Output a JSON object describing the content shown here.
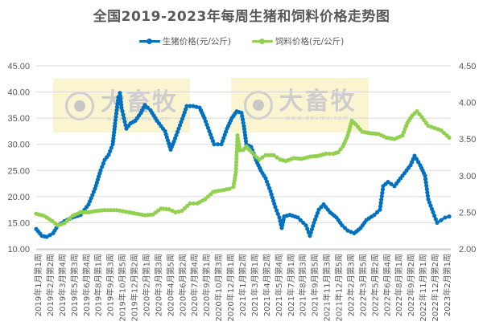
{
  "chart_data": {
    "type": "line",
    "title": "全国2019-2023年每周生猪和饲料价格走势图",
    "xlabel": "",
    "ylabel": "",
    "legend_position": "top",
    "grid": true,
    "y_left": {
      "min": 10,
      "max": 45,
      "step": 5,
      "ticks": [
        "10.00",
        "15.00",
        "20.00",
        "25.00",
        "30.00",
        "35.00",
        "40.00",
        "45.00"
      ]
    },
    "y_right": {
      "min": 2.0,
      "max": 4.5,
      "step": 0.5,
      "ticks": [
        "2.00",
        "2.50",
        "3.00",
        "3.50",
        "4.00",
        "4.50"
      ]
    },
    "categories": [
      "2019年1月第1周",
      "2019年2月第2周",
      "2019年3月第4周",
      "2019年5月第3周",
      "2019年6月第4周",
      "2019年8月第1周",
      "2019年9月第3周",
      "2019年10月第5周",
      "2019年12月第2周",
      "2020年2月第1周",
      "2020年3月第3周",
      "2020年4月第5周",
      "2020年6月第2周",
      "2020年7月第4周",
      "2020年9月第1周",
      "2020年10月第3周",
      "2020年12月第1周",
      "2021年1月第2周",
      "2021年3月第1周",
      "2021年4月第2周",
      "2021年5月第4周",
      "2021年7月第1周",
      "2021年8月第3周",
      "2021年9月第5周",
      "2021年11月第3周",
      "2021年12月第5周",
      "2022年2月第3周",
      "2022年3月第5周",
      "2022年5月第2周",
      "2022年6月第4周",
      "2022年8月第1周",
      "2022年9月第2周",
      "2022年11月第1周",
      "2022年12月第2周",
      "2023年2月第1周"
    ],
    "series": [
      {
        "name": "生猪价格(元/公斤)",
        "axis": "left",
        "color": "#0070C0",
        "points": [
          [
            45,
            13.8
          ],
          [
            52,
            12.5
          ],
          [
            58,
            12.3
          ],
          [
            66,
            13.0
          ],
          [
            72,
            14.5
          ],
          [
            80,
            15.3
          ],
          [
            90,
            16.0
          ],
          [
            100,
            16.5
          ],
          [
            110,
            18.5
          ],
          [
            118,
            21.5
          ],
          [
            125,
            25.0
          ],
          [
            130,
            27.0
          ],
          [
            135,
            28.0
          ],
          [
            140,
            30.0
          ],
          [
            143,
            34.0
          ],
          [
            147,
            39.0
          ],
          [
            149,
            39.8
          ],
          [
            151,
            37.0
          ],
          [
            154,
            35.0
          ],
          [
            157,
            33.0
          ],
          [
            162,
            34.0
          ],
          [
            168,
            34.5
          ],
          [
            175,
            36.0
          ],
          [
            180,
            37.5
          ],
          [
            187,
            36.5
          ],
          [
            195,
            34.5
          ],
          [
            205,
            32.5
          ],
          [
            212,
            29.0
          ],
          [
            216,
            30.5
          ],
          [
            222,
            33.0
          ],
          [
            228,
            35.5
          ],
          [
            232,
            37.3
          ],
          [
            240,
            37.3
          ],
          [
            248,
            37.0
          ],
          [
            254,
            35.0
          ],
          [
            260,
            32.5
          ],
          [
            266,
            30.0
          ],
          [
            275,
            30.0
          ],
          [
            282,
            33.0
          ],
          [
            288,
            35.0
          ],
          [
            294,
            36.3
          ],
          [
            300,
            36.0
          ],
          [
            303,
            33.5
          ],
          [
            306,
            30.0
          ],
          [
            312,
            29.5
          ],
          [
            318,
            27.0
          ],
          [
            324,
            25.0
          ],
          [
            330,
            23.5
          ],
          [
            336,
            21.0
          ],
          [
            342,
            18.0
          ],
          [
            347,
            16.0
          ],
          [
            350,
            14.0
          ],
          [
            353,
            16.2
          ],
          [
            360,
            16.5
          ],
          [
            370,
            16.0
          ],
          [
            380,
            14.5
          ],
          [
            385,
            12.5
          ],
          [
            390,
            15.0
          ],
          [
            396,
            17.5
          ],
          [
            402,
            18.5
          ],
          [
            410,
            17.0
          ],
          [
            418,
            16.0
          ],
          [
            425,
            14.5
          ],
          [
            432,
            13.5
          ],
          [
            440,
            13.0
          ],
          [
            448,
            14.0
          ],
          [
            455,
            15.5
          ],
          [
            465,
            16.5
          ],
          [
            472,
            17.5
          ],
          [
            476,
            22.0
          ],
          [
            482,
            22.8
          ],
          [
            490,
            22.0
          ],
          [
            500,
            24.0
          ],
          [
            505,
            25.0
          ],
          [
            510,
            26.0
          ],
          [
            515,
            27.8
          ],
          [
            522,
            26.0
          ],
          [
            528,
            24.0
          ],
          [
            532,
            19.5
          ],
          [
            538,
            17.0
          ],
          [
            543,
            15.0
          ],
          [
            548,
            15.5
          ],
          [
            553,
            16.0
          ],
          [
            558,
            16.2
          ]
        ]
      },
      {
        "name": "饲料价格(元/公斤)",
        "axis": "right",
        "color": "#92D050",
        "points": [
          [
            45,
            2.48
          ],
          [
            55,
            2.45
          ],
          [
            65,
            2.38
          ],
          [
            72,
            2.32
          ],
          [
            80,
            2.35
          ],
          [
            90,
            2.45
          ],
          [
            100,
            2.5
          ],
          [
            110,
            2.5
          ],
          [
            120,
            2.52
          ],
          [
            130,
            2.53
          ],
          [
            145,
            2.53
          ],
          [
            160,
            2.5
          ],
          [
            170,
            2.48
          ],
          [
            180,
            2.46
          ],
          [
            190,
            2.47
          ],
          [
            200,
            2.55
          ],
          [
            210,
            2.54
          ],
          [
            218,
            2.5
          ],
          [
            226,
            2.52
          ],
          [
            236,
            2.62
          ],
          [
            245,
            2.62
          ],
          [
            255,
            2.68
          ],
          [
            265,
            2.78
          ],
          [
            275,
            2.8
          ],
          [
            285,
            2.82
          ],
          [
            290,
            2.85
          ],
          [
            293,
            3.05
          ],
          [
            295,
            3.55
          ],
          [
            298,
            3.35
          ],
          [
            302,
            3.35
          ],
          [
            306,
            3.4
          ],
          [
            310,
            3.35
          ],
          [
            316,
            3.28
          ],
          [
            322,
            3.22
          ],
          [
            330,
            3.28
          ],
          [
            340,
            3.28
          ],
          [
            348,
            3.22
          ],
          [
            355,
            3.2
          ],
          [
            365,
            3.24
          ],
          [
            375,
            3.23
          ],
          [
            385,
            3.26
          ],
          [
            395,
            3.27
          ],
          [
            405,
            3.3
          ],
          [
            414,
            3.3
          ],
          [
            420,
            3.32
          ],
          [
            426,
            3.4
          ],
          [
            432,
            3.55
          ],
          [
            437,
            3.75
          ],
          [
            442,
            3.7
          ],
          [
            450,
            3.6
          ],
          [
            460,
            3.58
          ],
          [
            470,
            3.57
          ],
          [
            480,
            3.52
          ],
          [
            490,
            3.5
          ],
          [
            500,
            3.55
          ],
          [
            506,
            3.72
          ],
          [
            512,
            3.82
          ],
          [
            518,
            3.88
          ],
          [
            524,
            3.8
          ],
          [
            532,
            3.68
          ],
          [
            540,
            3.65
          ],
          [
            548,
            3.62
          ],
          [
            555,
            3.55
          ],
          [
            558,
            3.52
          ]
        ]
      }
    ]
  },
  "legend": {
    "pig_label": "生猪价格(元/公斤)",
    "feed_label": "饲料价格(元/公斤)"
  },
  "watermark": {
    "brand": "大畜牧",
    "url": "www.dxumu.com"
  }
}
